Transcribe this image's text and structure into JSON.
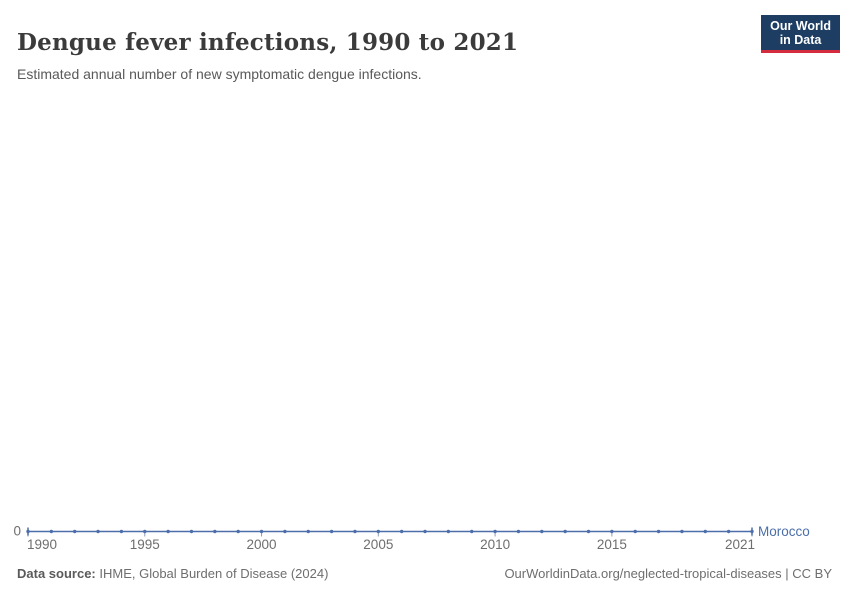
{
  "header": {
    "title": "Dengue fever infections, 1990 to 2021",
    "subtitle": "Estimated annual number of new symptomatic dengue infections.",
    "logo": {
      "line1": "Our World",
      "line2": "in Data",
      "bg_color": "#1d3d63",
      "accent_color": "#d42b3e"
    }
  },
  "chart_data": {
    "type": "line",
    "title": "Dengue fever infections, 1990 to 2021",
    "xlabel": "",
    "ylabel": "",
    "x_range": [
      1990,
      2021
    ],
    "ylim": [
      0,
      0
    ],
    "grid": false,
    "legend": "end-of-line entity label",
    "x_tick_labels": [
      "1990",
      "1995",
      "2000",
      "2005",
      "2010",
      "2015",
      "2021"
    ],
    "y_axis_labels": [
      "0"
    ],
    "axis_label_color": "#6e6e6e",
    "series": [
      {
        "name": "Morocco",
        "color": "#4c6fab",
        "x": [
          1990,
          1991,
          1992,
          1993,
          1994,
          1995,
          1996,
          1997,
          1998,
          1999,
          2000,
          2001,
          2002,
          2003,
          2004,
          2005,
          2006,
          2007,
          2008,
          2009,
          2010,
          2011,
          2012,
          2013,
          2014,
          2015,
          2016,
          2017,
          2018,
          2019,
          2020,
          2021
        ],
        "values": [
          0,
          0,
          0,
          0,
          0,
          0,
          0,
          0,
          0,
          0,
          0,
          0,
          0,
          0,
          0,
          0,
          0,
          0,
          0,
          0,
          0,
          0,
          0,
          0,
          0,
          0,
          0,
          0,
          0,
          0,
          0,
          0
        ]
      }
    ]
  },
  "footer": {
    "source_label": "Data source:",
    "source_text": " IHME, Global Burden of Disease (2024)",
    "attribution": "OurWorldinData.org/neglected-tropical-diseases | CC BY"
  }
}
